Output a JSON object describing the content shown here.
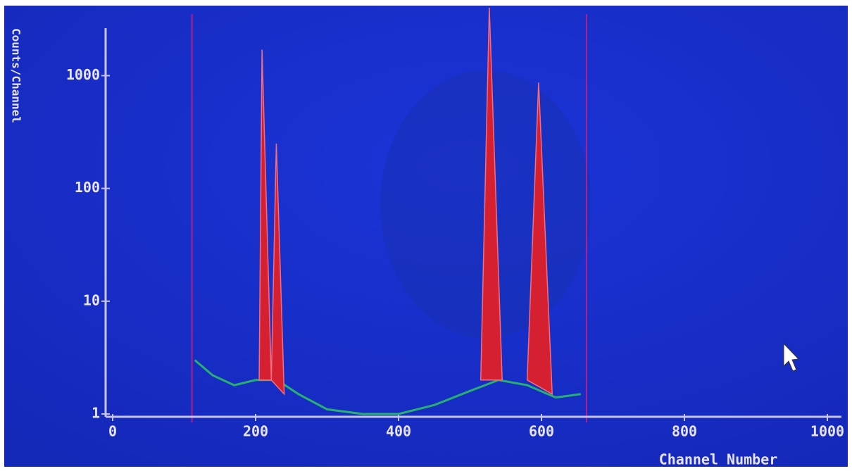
{
  "chart_data": {
    "type": "spectrum",
    "y_label": "Counts/Channel",
    "x_label": "Channel Number",
    "xlim": [
      0,
      1000
    ],
    "xticks": [
      0,
      200,
      400,
      600,
      800,
      1000
    ],
    "ylim": [
      1,
      4000
    ],
    "yticks": [
      1,
      10,
      100,
      1000
    ],
    "log_y": true,
    "color": "#d42030",
    "peaks": [
      {
        "x": [
          205,
          209,
          222
        ],
        "values": [
          2,
          1700,
          2
        ]
      },
      {
        "x": [
          222,
          229,
          240
        ],
        "values": [
          2,
          250,
          1.5
        ]
      },
      {
        "x": [
          515,
          527,
          545
        ],
        "values": [
          2,
          4000,
          2
        ]
      },
      {
        "x": [
          580,
          596,
          615
        ],
        "values": [
          2,
          870,
          1.5
        ]
      }
    ],
    "baseline": {
      "color": "#28b070",
      "x": [
        115,
        140,
        170,
        200,
        230,
        260,
        300,
        350,
        400,
        450,
        500,
        540,
        580,
        620,
        655
      ],
      "values": [
        3,
        2.2,
        1.8,
        2,
        2,
        1.5,
        1.1,
        1,
        1,
        1.2,
        1.6,
        2,
        1.8,
        1.4,
        1.5
      ]
    },
    "markers": {
      "color": "#b0208a",
      "x": [
        111,
        663
      ]
    }
  }
}
